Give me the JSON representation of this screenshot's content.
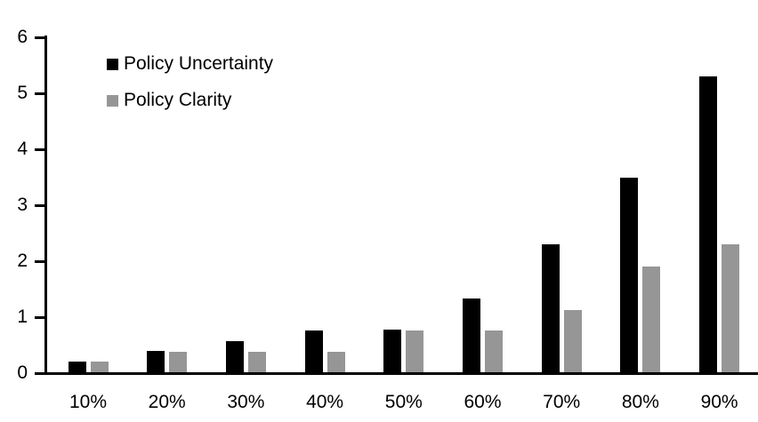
{
  "chart_data": {
    "type": "bar",
    "title": "",
    "categories": [
      "10%",
      "20%",
      "30%",
      "40%",
      "50%",
      "60%",
      "70%",
      "80%",
      "90%"
    ],
    "series": [
      {
        "name": "Policy Uncertainty",
        "color": "#000000",
        "values": [
          0.2,
          0.4,
          0.57,
          0.76,
          0.78,
          1.33,
          2.3,
          3.5,
          5.3
        ]
      },
      {
        "name": "Policy Clarity",
        "color": "#969696",
        "values": [
          0.2,
          0.38,
          0.38,
          0.38,
          0.76,
          0.76,
          1.13,
          1.9,
          2.3
        ]
      }
    ],
    "xlabel": "",
    "ylabel": "",
    "ylim": [
      0,
      6
    ],
    "y_ticks": [
      0,
      1,
      2,
      3,
      4,
      5,
      6
    ],
    "grid": false,
    "legend_position": "top-left-inside",
    "axis_color": "#000000"
  }
}
